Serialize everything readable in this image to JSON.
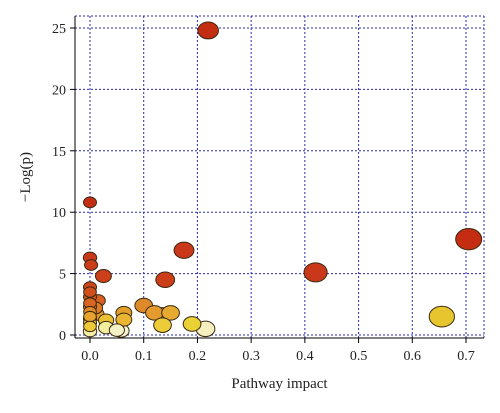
{
  "chart_data": {
    "type": "scatter",
    "xlabel": "Pathway impact",
    "ylabel": "−Log(p)",
    "xlim": [
      0,
      0.7
    ],
    "ylim": [
      0,
      25
    ],
    "xticks": [
      "0.0",
      "0.1",
      "0.2",
      "0.3",
      "0.4",
      "0.5",
      "0.6",
      "0.7"
    ],
    "yticks": [
      "0",
      "5",
      "10",
      "15",
      "20",
      "25"
    ],
    "grid": true,
    "color_scale": "-log(p): low = pale yellow, high = dark red",
    "points": [
      {
        "x": 0.22,
        "y": 24.8,
        "size": 0.35,
        "color": "#c42d12"
      },
      {
        "x": 0.705,
        "y": 7.8,
        "size": 0.5,
        "color": "#c42d12"
      },
      {
        "x": 0.42,
        "y": 5.1,
        "size": 0.42,
        "color": "#c9381a"
      },
      {
        "x": 0.175,
        "y": 6.9,
        "size": 0.33,
        "color": "#c9381a"
      },
      {
        "x": 0.14,
        "y": 4.5,
        "size": 0.3,
        "color": "#cc3d1a"
      },
      {
        "x": 0.0,
        "y": 10.8,
        "size": 0.14,
        "color": "#c42d12"
      },
      {
        "x": 0.0,
        "y": 6.3,
        "size": 0.15,
        "color": "#c9381a"
      },
      {
        "x": 0.002,
        "y": 5.7,
        "size": 0.14,
        "color": "#cc3d1a"
      },
      {
        "x": 0.025,
        "y": 4.8,
        "size": 0.22,
        "color": "#cd3e1a"
      },
      {
        "x": 0.0,
        "y": 3.9,
        "size": 0.14,
        "color": "#d0461c"
      },
      {
        "x": 0.0,
        "y": 3.5,
        "size": 0.13,
        "color": "#d24e1d"
      },
      {
        "x": 0.0,
        "y": 3.1,
        "size": 0.14,
        "color": "#d5541f"
      },
      {
        "x": 0.005,
        "y": 2.8,
        "size": 0.18,
        "color": "#d65a21"
      },
      {
        "x": 0.015,
        "y": 2.8,
        "size": 0.18,
        "color": "#d86022"
      },
      {
        "x": 0.0,
        "y": 2.6,
        "size": 0.13,
        "color": "#d86523"
      },
      {
        "x": 0.0,
        "y": 2.3,
        "size": 0.14,
        "color": "#db7226"
      },
      {
        "x": 0.01,
        "y": 2.2,
        "size": 0.18,
        "color": "#dd7b28"
      },
      {
        "x": 0.0,
        "y": 1.9,
        "size": 0.13,
        "color": "#e08a2a"
      },
      {
        "x": 0.012,
        "y": 1.7,
        "size": 0.2,
        "color": "#e3962c"
      },
      {
        "x": 0.0,
        "y": 1.5,
        "size": 0.13,
        "color": "#e6a42e"
      },
      {
        "x": 0.0,
        "y": 1.3,
        "size": 0.14,
        "color": "#e8ae30"
      },
      {
        "x": 0.0,
        "y": 1.0,
        "size": 0.14,
        "color": "#ebbd34"
      },
      {
        "x": 0.0,
        "y": 0.7,
        "size": 0.13,
        "color": "#edc838"
      },
      {
        "x": 0.0,
        "y": 0.3,
        "size": 0.15,
        "color": "#f2f0a8"
      },
      {
        "x": 0.03,
        "y": 1.2,
        "size": 0.2,
        "color": "#ecc235"
      },
      {
        "x": 0.03,
        "y": 0.6,
        "size": 0.2,
        "color": "#f4eda0"
      },
      {
        "x": 0.05,
        "y": 0.4,
        "size": 0.2,
        "color": "#f6f2c8"
      },
      {
        "x": 0.058,
        "y": 0.35,
        "size": 0.22,
        "color": "#f8f4d4"
      },
      {
        "x": 0.063,
        "y": 1.8,
        "size": 0.22,
        "color": "#e4a02d"
      },
      {
        "x": 0.063,
        "y": 1.25,
        "size": 0.22,
        "color": "#eab632"
      },
      {
        "x": 0.1,
        "y": 2.4,
        "size": 0.27,
        "color": "#df8a2a"
      },
      {
        "x": 0.12,
        "y": 1.8,
        "size": 0.27,
        "color": "#e49a2c"
      },
      {
        "x": 0.135,
        "y": 1.6,
        "size": 0.3,
        "color": "#e6a62f"
      },
      {
        "x": 0.15,
        "y": 1.8,
        "size": 0.27,
        "color": "#e7aa30"
      },
      {
        "x": 0.135,
        "y": 0.8,
        "size": 0.27,
        "color": "#eccc38"
      },
      {
        "x": 0.19,
        "y": 0.9,
        "size": 0.27,
        "color": "#ecd135"
      },
      {
        "x": 0.215,
        "y": 0.5,
        "size": 0.3,
        "color": "#f6f0c0"
      },
      {
        "x": 0.655,
        "y": 1.5,
        "size": 0.48,
        "color": "#e6c52e"
      }
    ]
  }
}
